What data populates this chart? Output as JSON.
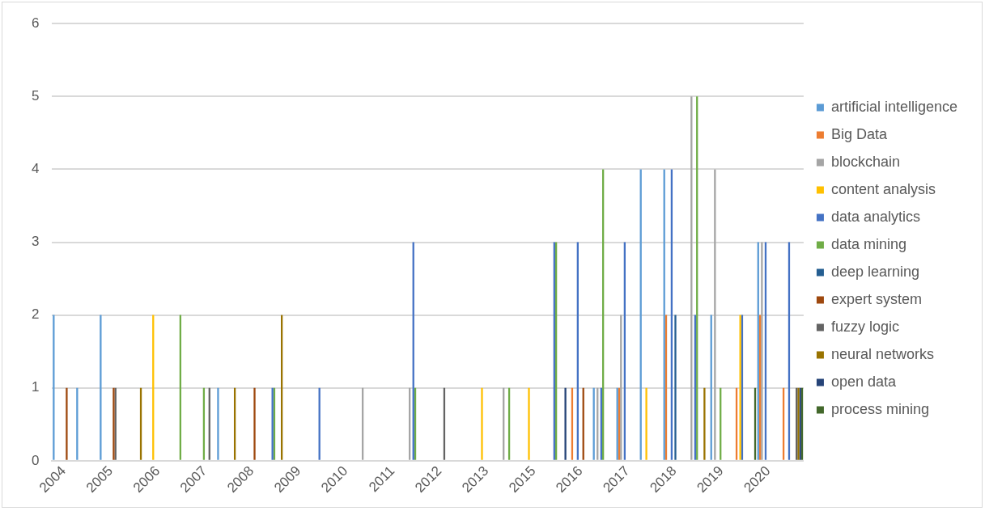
{
  "chart_data": {
    "type": "bar",
    "categories": [
      "2004",
      null,
      "2005",
      null,
      "2006",
      null,
      "2007",
      null,
      "2008",
      null,
      "2009",
      null,
      "2010",
      null,
      "2011",
      null,
      "2012",
      null,
      "2013",
      null,
      "2015",
      null,
      "2016",
      null,
      "2017",
      null,
      "2018",
      null,
      "2019",
      null,
      "2020",
      null
    ],
    "ylim": [
      0,
      6
    ],
    "yticks": [
      0,
      1,
      2,
      3,
      4,
      5,
      6
    ],
    "grid": "y",
    "legend": "right",
    "series": [
      {
        "name": "artificial intelligence",
        "color": "#5b9bd5",
        "values": [
          2,
          1,
          2,
          null,
          null,
          null,
          null,
          1,
          null,
          null,
          null,
          null,
          null,
          null,
          null,
          null,
          null,
          null,
          null,
          null,
          null,
          null,
          null,
          1,
          1,
          4,
          4,
          null,
          2,
          null,
          3,
          null
        ]
      },
      {
        "name": "Big Data",
        "color": "#ed7d31",
        "values": [
          null,
          null,
          null,
          null,
          null,
          null,
          null,
          null,
          null,
          null,
          null,
          null,
          null,
          null,
          null,
          null,
          null,
          null,
          null,
          null,
          null,
          null,
          1,
          null,
          1,
          null,
          2,
          null,
          null,
          1,
          2,
          1
        ]
      },
      {
        "name": "blockchain",
        "color": "#a5a5a5",
        "values": [
          null,
          null,
          null,
          null,
          null,
          null,
          null,
          null,
          null,
          null,
          null,
          null,
          null,
          1,
          null,
          1,
          null,
          null,
          null,
          1,
          null,
          null,
          null,
          1,
          2,
          null,
          null,
          5,
          4,
          null,
          3,
          null
        ]
      },
      {
        "name": "content analysis",
        "color": "#ffc000",
        "values": [
          null,
          null,
          null,
          null,
          2,
          null,
          null,
          null,
          null,
          null,
          null,
          null,
          null,
          null,
          null,
          null,
          null,
          null,
          1,
          null,
          1,
          null,
          null,
          null,
          null,
          1,
          null,
          null,
          null,
          2,
          null,
          null
        ]
      },
      {
        "name": "data analytics",
        "color": "#4472c4",
        "values": [
          null,
          null,
          null,
          null,
          null,
          null,
          null,
          null,
          null,
          1,
          null,
          1,
          null,
          null,
          null,
          3,
          null,
          null,
          null,
          null,
          null,
          3,
          3,
          1,
          3,
          null,
          4,
          2,
          null,
          2,
          3,
          3
        ]
      },
      {
        "name": "data mining",
        "color": "#70ad47",
        "values": [
          null,
          null,
          null,
          null,
          null,
          2,
          1,
          null,
          null,
          1,
          null,
          null,
          null,
          null,
          null,
          1,
          null,
          null,
          null,
          1,
          null,
          3,
          null,
          4,
          null,
          null,
          null,
          5,
          1,
          null,
          null,
          null
        ]
      },
      {
        "name": "deep learning",
        "color": "#255e91",
        "values": [
          null,
          null,
          null,
          null,
          null,
          null,
          null,
          null,
          null,
          null,
          null,
          null,
          null,
          null,
          null,
          null,
          null,
          null,
          null,
          null,
          null,
          null,
          null,
          null,
          null,
          null,
          2,
          null,
          null,
          null,
          null,
          null
        ]
      },
      {
        "name": "expert system",
        "color": "#9e480e",
        "values": [
          1,
          null,
          1,
          null,
          null,
          null,
          null,
          null,
          1,
          null,
          null,
          null,
          null,
          null,
          null,
          null,
          null,
          null,
          null,
          null,
          null,
          null,
          1,
          null,
          null,
          null,
          null,
          null,
          null,
          null,
          null,
          null
        ]
      },
      {
        "name": "fuzzy logic",
        "color": "#636363",
        "values": [
          null,
          null,
          1,
          null,
          null,
          null,
          1,
          null,
          null,
          null,
          null,
          null,
          null,
          null,
          null,
          null,
          1,
          null,
          null,
          null,
          null,
          null,
          null,
          null,
          null,
          null,
          null,
          null,
          null,
          null,
          null,
          1
        ]
      },
      {
        "name": "neural networks",
        "color": "#997300",
        "values": [
          null,
          null,
          null,
          1,
          null,
          null,
          null,
          1,
          null,
          2,
          null,
          null,
          null,
          null,
          null,
          null,
          null,
          null,
          null,
          null,
          null,
          null,
          null,
          null,
          null,
          null,
          null,
          1,
          null,
          null,
          null,
          1
        ]
      },
      {
        "name": "open data",
        "color": "#264478",
        "values": [
          null,
          null,
          null,
          null,
          null,
          null,
          null,
          null,
          null,
          null,
          null,
          null,
          null,
          null,
          null,
          null,
          null,
          null,
          null,
          null,
          null,
          1,
          null,
          null,
          null,
          null,
          null,
          null,
          null,
          null,
          null,
          1
        ]
      },
      {
        "name": "process mining",
        "color": "#43682b",
        "values": [
          null,
          null,
          null,
          null,
          null,
          null,
          null,
          null,
          null,
          null,
          null,
          null,
          null,
          null,
          null,
          null,
          null,
          null,
          null,
          null,
          null,
          null,
          null,
          null,
          null,
          null,
          null,
          null,
          null,
          1,
          null,
          1
        ]
      }
    ]
  }
}
